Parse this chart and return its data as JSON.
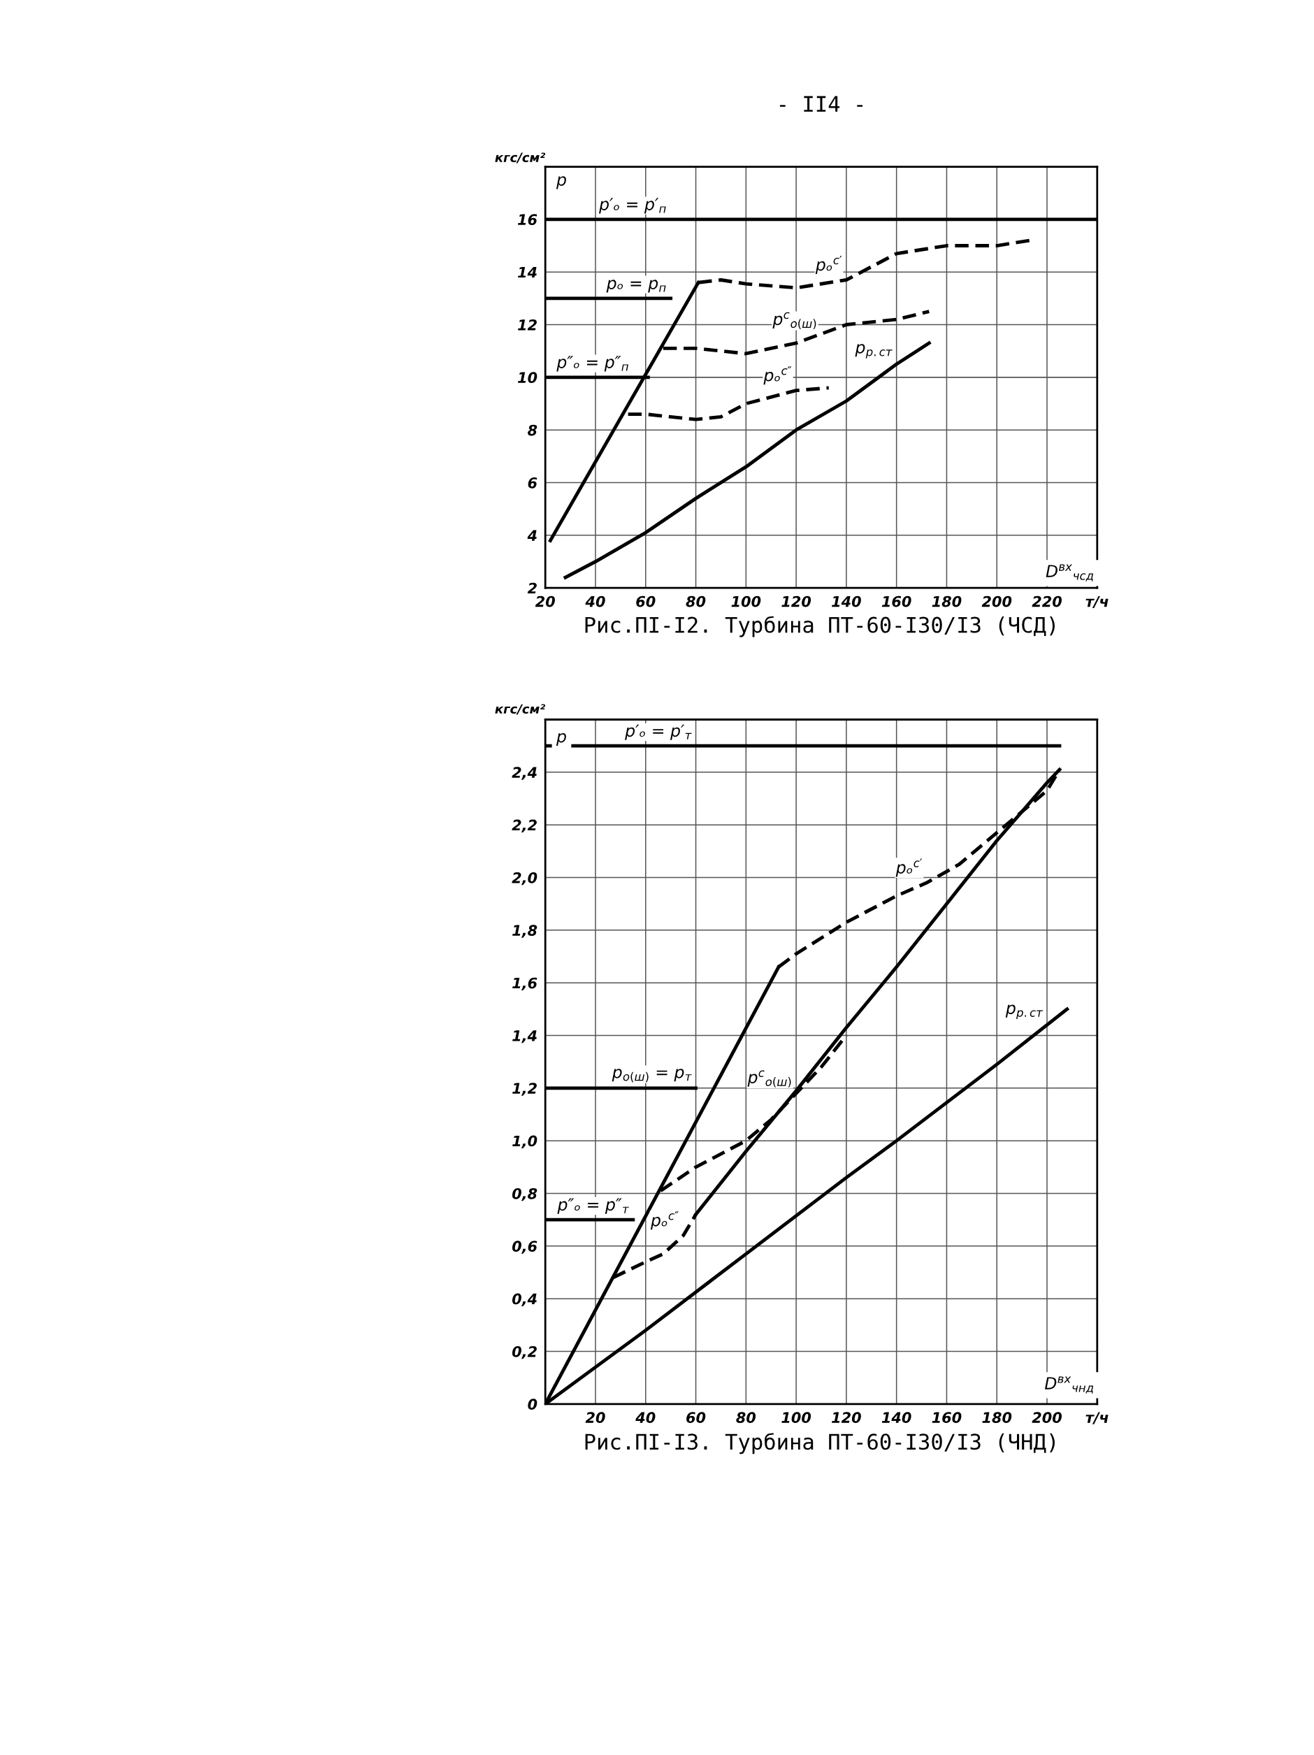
{
  "chart_data": [
    {
      "type": "line",
      "title": "Рис.ПI-I2. Турбина ПТ-60-I30/I3 (ЧСД)",
      "ylabel": "кгс/см²",
      "xlabel": "D$^{вх}$$_{чсд}$",
      "xlim": [
        20,
        240
      ],
      "xticks": [
        20,
        40,
        60,
        80,
        100,
        120,
        140,
        160,
        180,
        200,
        220,
        {
          "value": 240,
          "label": "т/ч"
        }
      ],
      "ylim": [
        2,
        18
      ],
      "yticks": [
        2,
        4,
        6,
        8,
        10,
        12,
        14,
        16,
        {
          "value": 18,
          "label": null
        }
      ],
      "grid": true,
      "marker": "none",
      "series": [
        {
          "color": "#000000",
          "line_style": "solid",
          "x": [
            20,
            240
          ],
          "values": [
            16,
            16
          ]
        },
        {
          "color": "#000000",
          "line_style": "solid",
          "x": [
            20,
            70
          ],
          "values": [
            13,
            13
          ]
        },
        {
          "color": "#000000",
          "line_style": "solid",
          "x": [
            20,
            61
          ],
          "values": [
            10,
            10
          ]
        },
        {
          "color": "#000000",
          "line_style": "solid",
          "x": [
            22,
            81
          ],
          "values": [
            3.8,
            13.6
          ]
        },
        {
          "color": "#000000",
          "line_style": "dashed",
          "x": [
            81,
            90,
            100,
            120,
            140,
            150,
            160,
            180,
            200,
            213
          ],
          "values": [
            13.6,
            13.7,
            13.55,
            13.4,
            13.7,
            14.2,
            14.7,
            15.0,
            15.0,
            15.2
          ]
        },
        {
          "color": "#000000",
          "line_style": "dashed",
          "x": [
            67,
            80,
            100,
            120,
            140,
            160,
            173
          ],
          "values": [
            11.1,
            11.1,
            10.9,
            11.3,
            12.0,
            12.2,
            12.5
          ]
        },
        {
          "color": "#000000",
          "line_style": "dashed",
          "x": [
            53,
            60,
            80,
            90,
            100,
            120,
            133
          ],
          "values": [
            8.6,
            8.6,
            8.4,
            8.5,
            9.0,
            9.5,
            9.6
          ]
        },
        {
          "color": "#000000",
          "line_style": "solid",
          "x": [
            28,
            40,
            60,
            80,
            100,
            120,
            140,
            160,
            173
          ],
          "values": [
            2.4,
            3.0,
            4.1,
            5.4,
            6.6,
            8.0,
            9.1,
            10.5,
            11.3
          ]
        }
      ],
      "annotations": [
        "- II4 -",
        "p",
        {
          "text": "p′ₒ = p′$_{п}$",
          "x": 70,
          "y": 16
        },
        {
          "text": "pₒ = p$_{п}$",
          "x": 70,
          "y": 13
        },
        {
          "text": "p″ₒ = p″$_{п}$",
          "x": 55,
          "y": 10
        },
        {
          "text": "pₒ$^{с′}$",
          "x": 140,
          "y": 13.7
        },
        {
          "text": "p$^{с}$$_{о(ш)}$",
          "x": 130,
          "y": 11.6
        },
        {
          "text": "pₒ$^{с″}$",
          "x": 120,
          "y": 9.5
        },
        {
          "text": "p$_{р.ст}$",
          "x": 160,
          "y": 10.5
        }
      ]
    },
    {
      "type": "line",
      "title": "Рис.ПI-I3. Турбина ПТ-60-I30/I3 (ЧНД)",
      "ylabel": "кгс/см²",
      "xlabel": "D$^{вх}$$_{чнд}$",
      "xlim": [
        0,
        220
      ],
      "xticks": [
        {
          "value": 0,
          "label": null
        },
        20,
        40,
        60,
        80,
        100,
        120,
        140,
        160,
        180,
        200,
        {
          "value": 220,
          "label": "т/ч"
        }
      ],
      "ylim": [
        0,
        2.6
      ],
      "yticks": [
        0,
        {
          "value": 0.2,
          "label": "0,2"
        },
        {
          "value": 0.4,
          "label": "0,4"
        },
        {
          "value": 0.6,
          "label": "0,6"
        },
        {
          "value": 0.8,
          "label": "0,8"
        },
        {
          "value": 1.0,
          "label": "1,0"
        },
        {
          "value": 1.2,
          "label": "1,2"
        },
        {
          "value": 1.4,
          "label": "1,4"
        },
        {
          "value": 1.6,
          "label": "1,6"
        },
        {
          "value": 1.8,
          "label": "1,8"
        },
        {
          "value": 2.0,
          "label": "2,0"
        },
        {
          "value": 2.2,
          "label": "2,2"
        },
        {
          "value": 2.4,
          "label": "2,4"
        },
        {
          "value": 2.6,
          "label": null
        }
      ],
      "grid": true,
      "marker": "none",
      "series": [
        {
          "color": "#000000",
          "line_style": "solid",
          "x": [
            0,
            205
          ],
          "values": [
            2.5,
            2.5
          ]
        },
        {
          "color": "#000000",
          "line_style": "solid",
          "x": [
            0,
            60
          ],
          "values": [
            1.2,
            1.2
          ]
        },
        {
          "color": "#000000",
          "line_style": "solid",
          "x": [
            0,
            35
          ],
          "values": [
            0.7,
            0.7
          ]
        },
        {
          "color": "#000000",
          "line_style": "solid",
          "x": [
            0,
            93
          ],
          "values": [
            0,
            1.66
          ]
        },
        {
          "color": "#000000",
          "line_style": "dashed",
          "x": [
            93,
            100,
            120,
            140,
            152,
            165,
            180,
            200,
            205
          ],
          "values": [
            1.66,
            1.71,
            1.83,
            1.93,
            1.98,
            2.05,
            2.17,
            2.33,
            2.41
          ]
        },
        {
          "color": "#000000",
          "line_style": "dashed",
          "x": [
            46,
            60,
            80,
            90,
            100,
            110,
            120
          ],
          "values": [
            0.81,
            0.9,
            1.0,
            1.08,
            1.18,
            1.28,
            1.4
          ]
        },
        {
          "color": "#000000",
          "line_style": "dashed",
          "x": [
            27,
            40,
            47,
            55,
            60
          ],
          "values": [
            0.48,
            0.54,
            0.57,
            0.64,
            0.72
          ]
        },
        {
          "color": "#000000",
          "line_style": "solid",
          "x": [
            60,
            80,
            100,
            120,
            140,
            160,
            180,
            200,
            205
          ],
          "values": [
            0.72,
            0.96,
            1.19,
            1.43,
            1.66,
            1.9,
            2.14,
            2.36,
            2.41
          ]
        },
        {
          "color": "#000000",
          "line_style": "solid",
          "x": [
            0,
            40,
            80,
            120,
            140,
            180,
            208
          ],
          "values": [
            0,
            0.28,
            0.57,
            0.86,
            1.0,
            1.29,
            1.5
          ]
        }
      ],
      "annotations": [
        "p",
        {
          "text": "p′ₒ = p′$_{т}$",
          "x": 60,
          "y": 2.5
        },
        {
          "text": "p$_{о(ш)}$ = p$_{т}$",
          "x": 60,
          "y": 1.2
        },
        {
          "text": "p″ₒ = p″$_{т}$",
          "x": 35,
          "y": 0.7
        },
        {
          "text": "pₒ$^{с′}$",
          "x": 152,
          "y": 1.98
        },
        {
          "text": "p$^{с}$$_{о(ш)}$",
          "x": 100,
          "y": 1.18
        },
        {
          "text": "pₒ$^{с″}$",
          "x": 55,
          "y": 0.64
        },
        {
          "text": "p$_{р.ст}$",
          "x": 200,
          "y": 1.44
        }
      ]
    }
  ]
}
